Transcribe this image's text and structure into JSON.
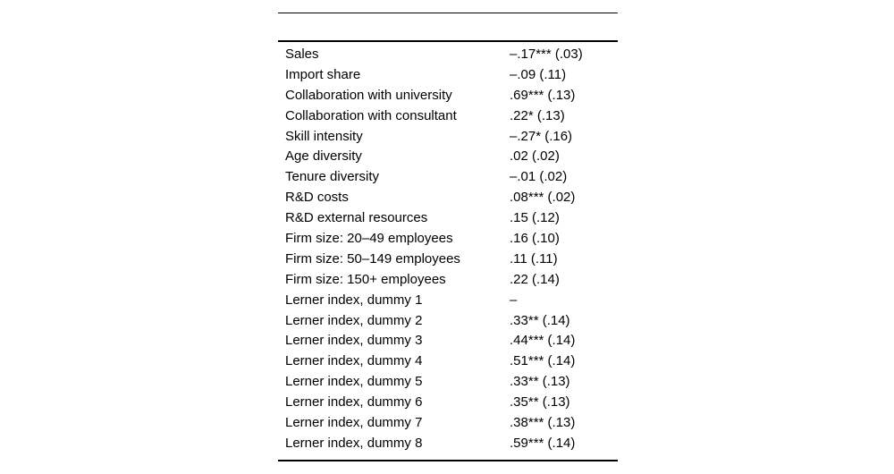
{
  "table": {
    "description": "Regression results table fragment",
    "text_color": "#000000",
    "rule_color": "#000000",
    "rows": [
      {
        "label": "Sales",
        "value": "–.17*** (.03)"
      },
      {
        "label": "Import share",
        "value": "–.09 (.11)"
      },
      {
        "label": "Collaboration with university",
        "value": ".69*** (.13)"
      },
      {
        "label": "Collaboration with consultant",
        "value": ".22* (.13)"
      },
      {
        "label": "Skill intensity",
        "value": "–.27* (.16)"
      },
      {
        "label": "Age diversity",
        "value": ".02 (.02)"
      },
      {
        "label": "Tenure diversity",
        "value": "–.01 (.02)"
      },
      {
        "label": "R&D costs",
        "value": ".08*** (.02)"
      },
      {
        "label": "R&D external resources",
        "value": ".15 (.12)"
      },
      {
        "label": "Firm size: 20–49 employees",
        "value": ".16 (.10)"
      },
      {
        "label": "Firm size: 50–149 employees",
        "value": ".11 (.11)"
      },
      {
        "label": "Firm size: 150+ employees",
        "value": ".22 (.14)"
      },
      {
        "label": "Lerner index, dummy 1",
        "value": "–"
      },
      {
        "label": "Lerner index, dummy 2",
        "value": ".33** (.14)"
      },
      {
        "label": "Lerner index, dummy 3",
        "value": ".44*** (.14)"
      },
      {
        "label": "Lerner index, dummy 4",
        "value": ".51*** (.14)"
      },
      {
        "label": "Lerner index, dummy 5",
        "value": ".33** (.13)"
      },
      {
        "label": "Lerner index, dummy 6",
        "value": ".35** (.13)"
      },
      {
        "label": "Lerner index, dummy 7",
        "value": ".38*** (.13)"
      },
      {
        "label": "Lerner index, dummy 8",
        "value": ".59*** (.14)"
      }
    ]
  }
}
